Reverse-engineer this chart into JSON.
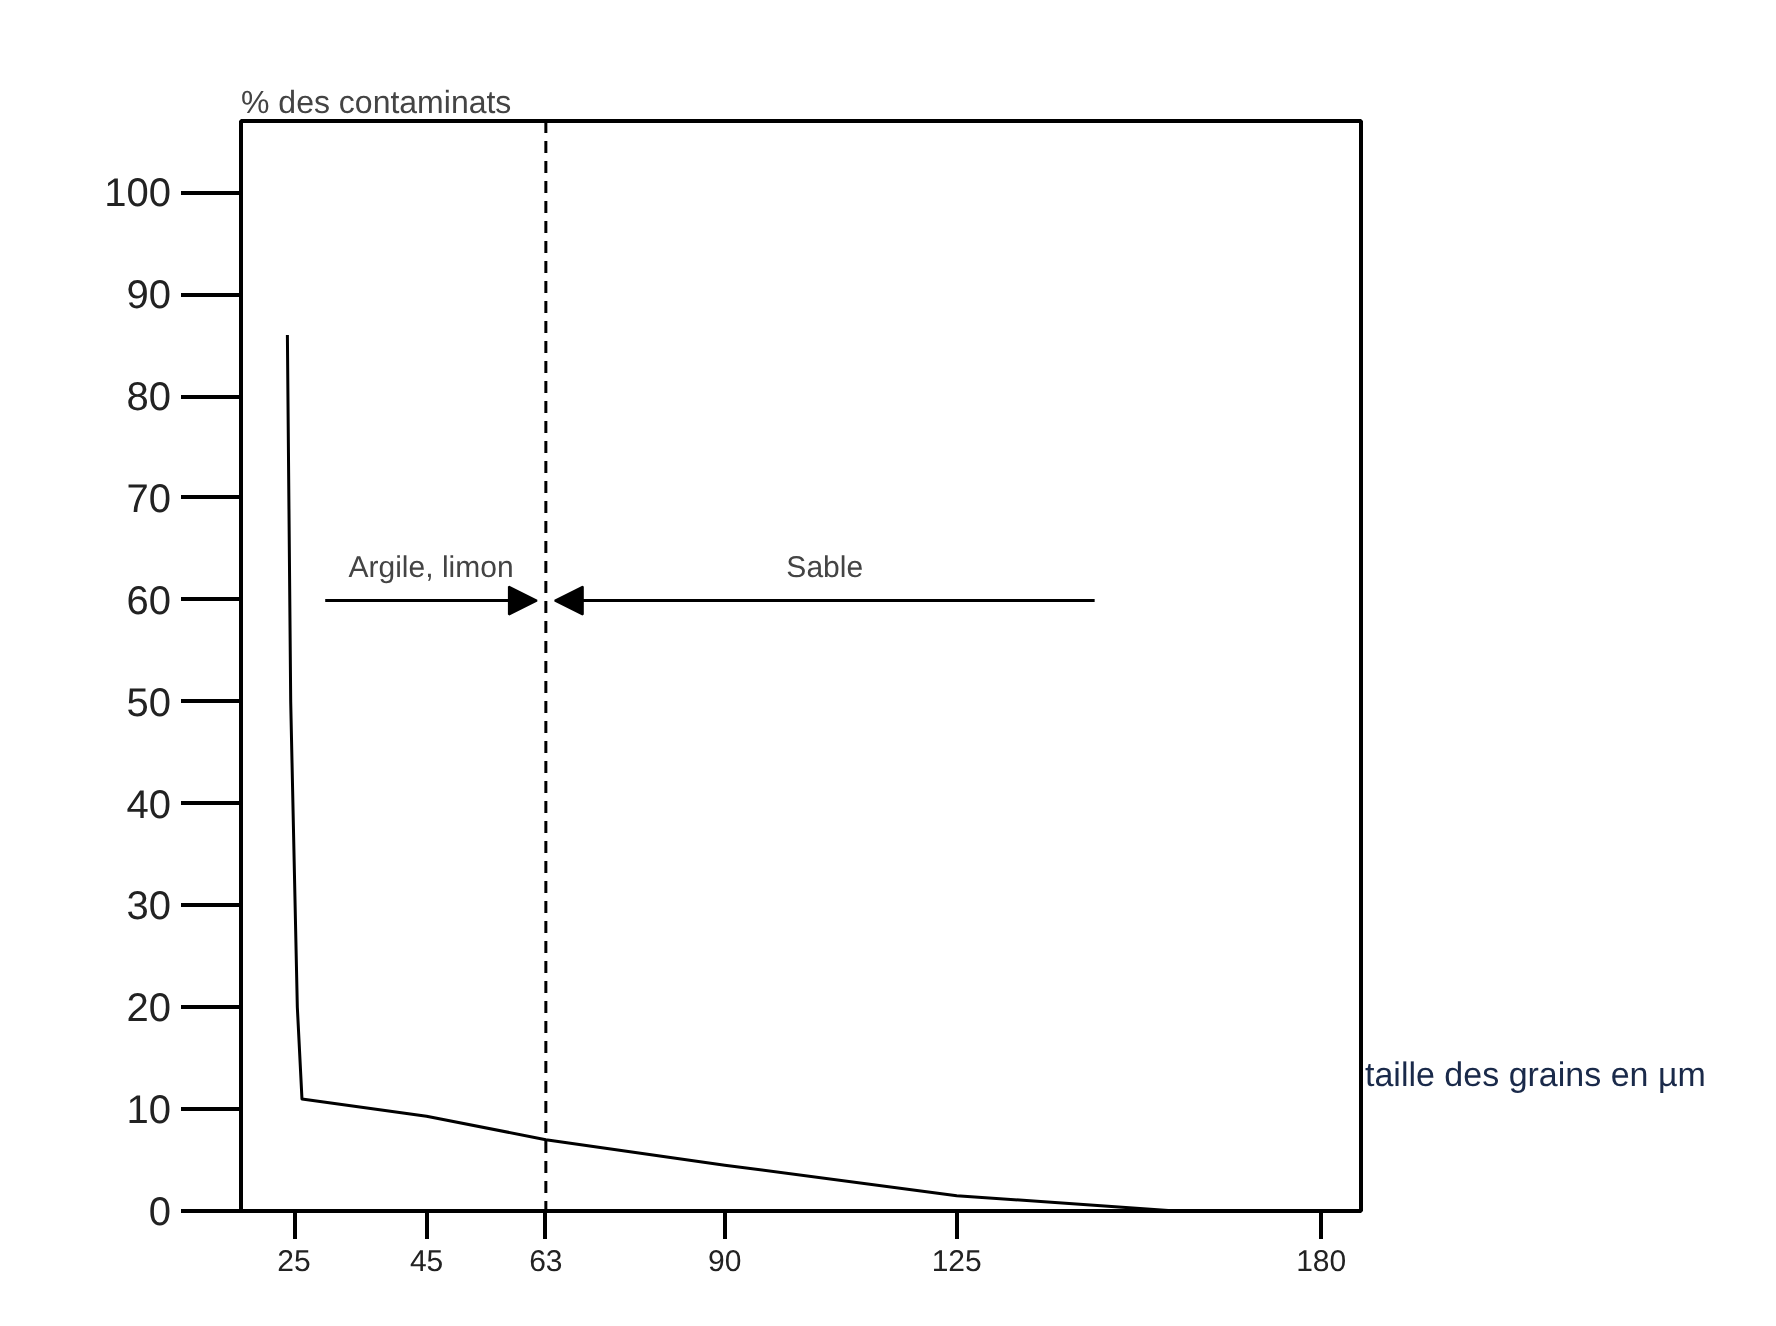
{
  "chart_data": {
    "type": "line",
    "xlabel": "taille des grains en µm",
    "ylabel": "% des contaminats",
    "series": [
      {
        "color": "#000000",
        "x": [
          24,
          24.5,
          25.5,
          26.2,
          45,
          63,
          90,
          125,
          158
        ],
        "values": [
          86,
          50,
          20,
          11,
          9.3,
          7,
          4.5,
          1.5,
          0
        ]
      }
    ],
    "xlim": [
      17,
      186
    ],
    "ylim": [
      0,
      107
    ],
    "xticks": [
      25,
      45,
      63,
      90,
      125,
      180
    ],
    "yticks": [
      0,
      10,
      20,
      30,
      40,
      50,
      60,
      70,
      80,
      90,
      100
    ],
    "ref_lines": [
      {
        "axis": "x",
        "value": 63,
        "line_style": "dashed"
      }
    ],
    "annotations": [
      "Argile, limon",
      "Sable"
    ],
    "grid": false,
    "marker": "none",
    "line_style": "solid"
  }
}
